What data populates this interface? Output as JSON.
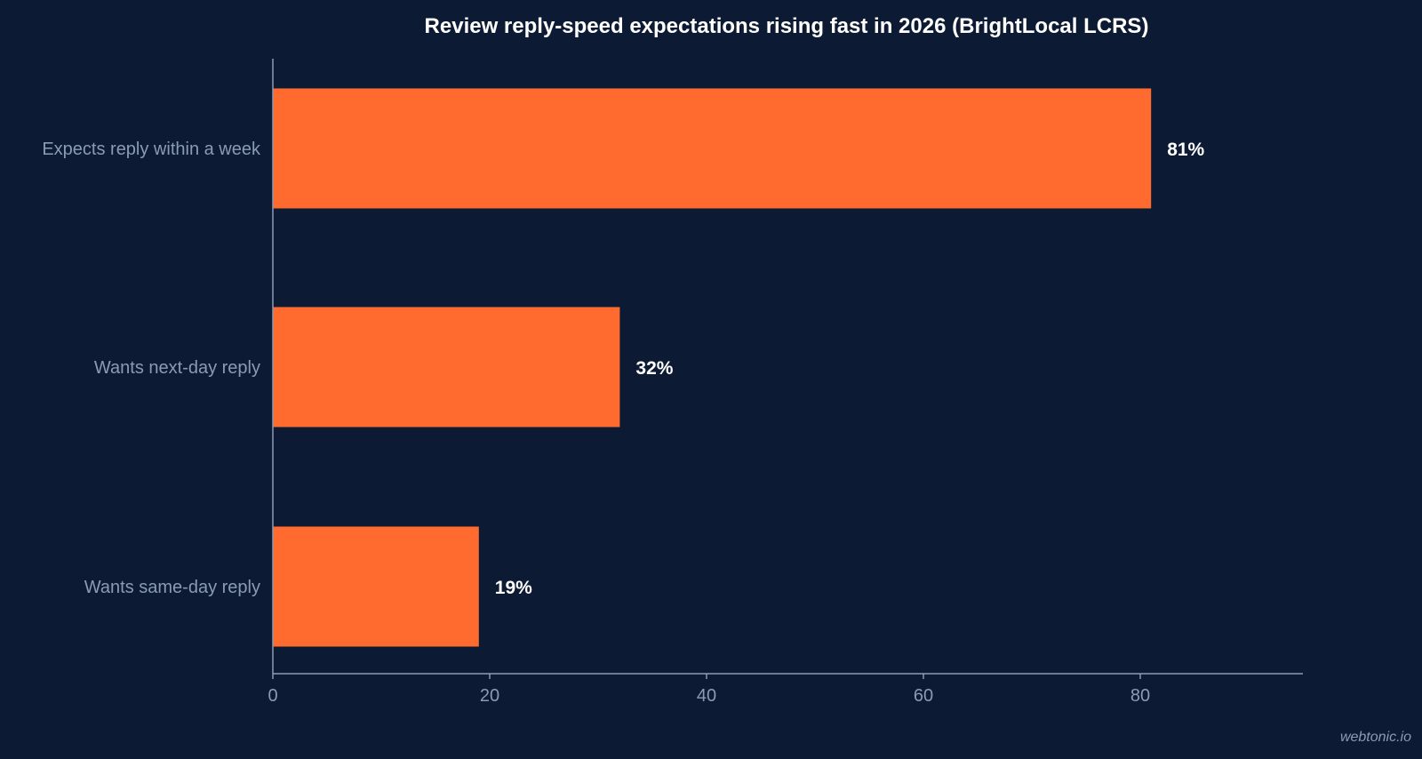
{
  "chart_data": {
    "type": "bar",
    "orientation": "horizontal",
    "title": "Review reply-speed expectations rising fast in 2026 (BrightLocal LCRS)",
    "categories": [
      "Expects reply within a week",
      "Wants next-day reply",
      "Wants same-day reply"
    ],
    "values": [
      81,
      32,
      19
    ],
    "data_labels": [
      "81%",
      "32%",
      "19%"
    ],
    "xlim": [
      0,
      95
    ],
    "xticks": [
      0,
      20,
      40,
      60,
      80
    ],
    "xtick_labels": [
      "0",
      "20",
      "40",
      "60",
      "80"
    ],
    "xlabel": "",
    "ylabel": "",
    "grid": false,
    "colors": {
      "background": "#0c1b33",
      "bar": "#ff6b2e",
      "axis": "#8b9bb4",
      "text_muted": "#8b9bb4",
      "text_strong": "#ffffff"
    }
  },
  "watermark": "webtonic.io"
}
